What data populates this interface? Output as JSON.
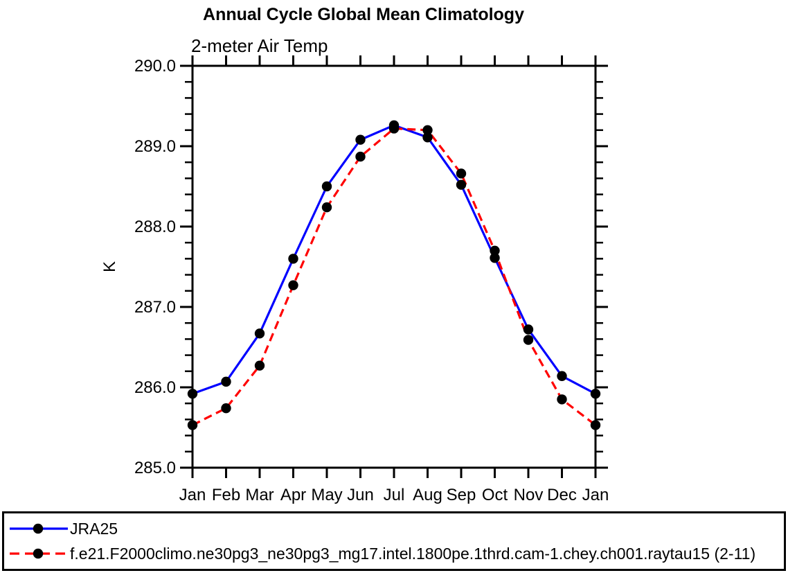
{
  "page": {
    "title": "Annual Cycle Global Mean Climatology",
    "subtitle": "2-meter Air Temp"
  },
  "chart_data": {
    "type": "line",
    "title": "Annual Cycle Global Mean Climatology",
    "subtitle": "2-meter Air Temp",
    "xlabel": "",
    "ylabel": "K",
    "categories": [
      "Jan",
      "Feb",
      "Mar",
      "Apr",
      "May",
      "Jun",
      "Jul",
      "Aug",
      "Sep",
      "Oct",
      "Nov",
      "Dec",
      "Jan"
    ],
    "ylim": [
      285.0,
      290.0
    ],
    "ytick_major_step": 1.0,
    "ytick_minor_step": 0.2,
    "ytick_labels": [
      "285.0",
      "286.0",
      "287.0",
      "288.0",
      "289.0",
      "290.0"
    ],
    "grid": false,
    "legend_position": "bottom-box",
    "axis_color": "#000000",
    "marker_color": "#000000",
    "series": [
      {
        "name": "JRA25",
        "color": "#0000ff",
        "line_style": "solid",
        "marker": "circle",
        "values": [
          285.92,
          286.07,
          286.67,
          287.6,
          288.5,
          289.08,
          289.26,
          289.11,
          288.52,
          287.61,
          286.72,
          286.14,
          285.92
        ]
      },
      {
        "name": "f.e21.F2000climo.ne30pg3_ne30pg3_mg17.intel.1800pe.1thrd.cam-1.chey.ch001.raytau15 (2-11)",
        "color": "#ff0000",
        "line_style": "dashed",
        "marker": "circle",
        "values": [
          285.53,
          285.74,
          286.27,
          287.27,
          288.24,
          288.87,
          289.22,
          289.2,
          288.66,
          287.7,
          286.59,
          285.85,
          285.53
        ]
      }
    ]
  }
}
